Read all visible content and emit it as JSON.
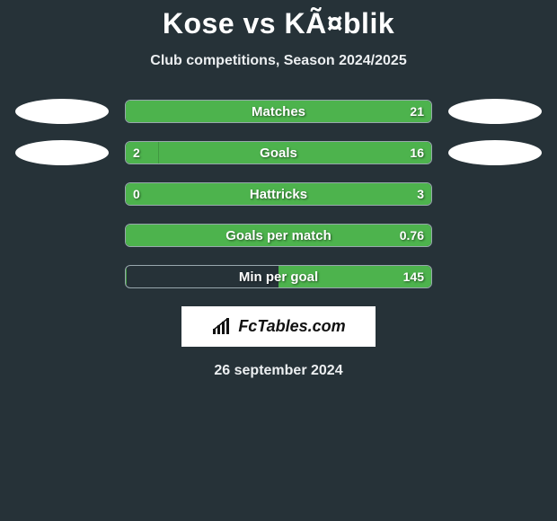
{
  "title": "Kose vs KÃ¤blik",
  "subtitle": "Club competitions, Season 2024/2025",
  "date": "26 september 2024",
  "brand": "FcTables.com",
  "colors": {
    "background": "#263238",
    "bar_border": "#98a7ad",
    "bar_fill": "#4db34d",
    "text": "#ffffff",
    "logo_bg": "#ffffff",
    "logo_text": "#111111"
  },
  "rows": [
    {
      "label": "Matches",
      "left_value": "",
      "right_value": "21",
      "left_fill_pct": 0,
      "right_fill_pct": 100,
      "show_left_oval": true,
      "show_right_oval": true
    },
    {
      "label": "Goals",
      "left_value": "2",
      "right_value": "16",
      "left_fill_pct": 11,
      "right_fill_pct": 89,
      "show_left_oval": true,
      "show_right_oval": true
    },
    {
      "label": "Hattricks",
      "left_value": "0",
      "right_value": "3",
      "left_fill_pct": 0,
      "right_fill_pct": 100,
      "show_left_oval": false,
      "show_right_oval": false
    },
    {
      "label": "Goals per match",
      "left_value": "",
      "right_value": "0.76",
      "left_fill_pct": 0,
      "right_fill_pct": 100,
      "show_left_oval": false,
      "show_right_oval": false
    },
    {
      "label": "Min per goal",
      "left_value": "",
      "right_value": "145",
      "left_fill_pct": 0,
      "right_fill_pct": 50,
      "show_left_oval": false,
      "show_right_oval": false
    }
  ]
}
